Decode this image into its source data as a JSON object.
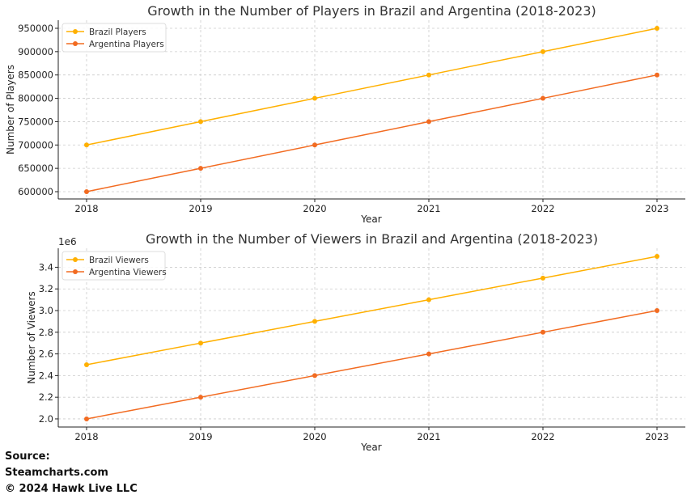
{
  "chart_data": [
    {
      "type": "line",
      "title": "Growth in the Number of Players in Brazil and Argentina (2018-2023)",
      "xlabel": "Year",
      "ylabel": "Number of Players",
      "x": [
        2018,
        2019,
        2020,
        2021,
        2022,
        2023
      ],
      "yticks": [
        600000,
        650000,
        700000,
        750000,
        800000,
        850000,
        900000,
        950000
      ],
      "ylim": [
        584400,
        967300
      ],
      "grid": true,
      "legend_position": "top-left",
      "series": [
        {
          "name": "Brazil Players",
          "color": "#FFB000",
          "values": [
            700000,
            750000,
            800000,
            850000,
            900000,
            950000
          ]
        },
        {
          "name": "Argentina Players",
          "color": "#F26B21",
          "values": [
            600000,
            650000,
            700000,
            750000,
            800000,
            850000
          ]
        }
      ]
    },
    {
      "type": "line",
      "title": "Growth in the Number of Viewers in Brazil and Argentina (2018-2023)",
      "xlabel": "Year",
      "ylabel": "Number of Viewers",
      "offset_label": "1e6",
      "x": [
        2018,
        2019,
        2020,
        2021,
        2022,
        2023
      ],
      "yticks": [
        2.0,
        2.2,
        2.4,
        2.6,
        2.8,
        3.0,
        3.2,
        3.4
      ],
      "ylim": [
        1.925,
        3.575
      ],
      "grid": true,
      "legend_position": "top-left",
      "series": [
        {
          "name": "Brazil Viewers",
          "color": "#FFB000",
          "values": [
            2.5,
            2.7,
            2.9,
            3.1,
            3.3,
            3.5
          ]
        },
        {
          "name": "Argentina Viewers",
          "color": "#F26B21",
          "values": [
            2.0,
            2.2,
            2.4,
            2.6,
            2.8,
            3.0
          ]
        }
      ]
    }
  ],
  "source": {
    "line1": "Source:",
    "line2": "Steamcharts.com",
    "line3": "© 2024 Hawk Live LLC"
  }
}
